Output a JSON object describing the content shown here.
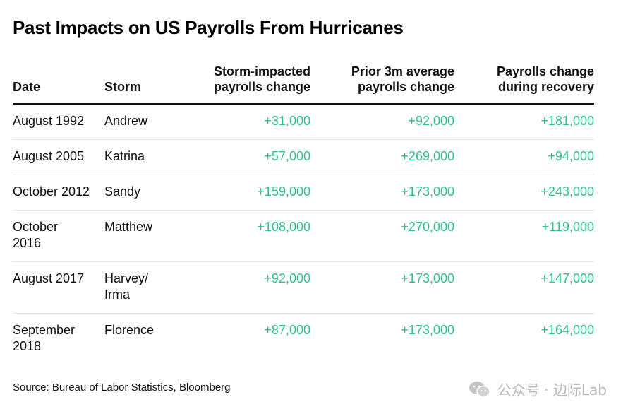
{
  "title": "Past Impacts on US Payrolls From Hurricanes",
  "table": {
    "headers": {
      "date": "Date",
      "storm": "Storm",
      "col_a_line1": "Storm-impacted",
      "col_a_line2": "payrolls change",
      "col_b_line1": "Prior 3m average",
      "col_b_line2": "payrolls change",
      "col_c_line1": "Payrolls change",
      "col_c_line2": "during recovery"
    },
    "rows": [
      {
        "date_l1": "August 1992",
        "date_l2": "",
        "storm_l1": "Andrew",
        "storm_l2": "",
        "impacted": "+31,000",
        "prior": "+92,000",
        "recovery": "+181,000"
      },
      {
        "date_l1": "August 2005",
        "date_l2": "",
        "storm_l1": "Katrina",
        "storm_l2": "",
        "impacted": "+57,000",
        "prior": "+269,000",
        "recovery": "+94,000"
      },
      {
        "date_l1": "October 2012",
        "date_l2": "",
        "storm_l1": "Sandy",
        "storm_l2": "",
        "impacted": "+159,000",
        "prior": "+173,000",
        "recovery": "+243,000"
      },
      {
        "date_l1": "October",
        "date_l2": "2016",
        "storm_l1": "Matthew",
        "storm_l2": "",
        "impacted": "+108,000",
        "prior": "+270,000",
        "recovery": "+119,000"
      },
      {
        "date_l1": "August 2017",
        "date_l2": "",
        "storm_l1": "Harvey/",
        "storm_l2": "Irma",
        "impacted": "+92,000",
        "prior": "+173,000",
        "recovery": "+147,000"
      },
      {
        "date_l1": "September",
        "date_l2": "2018",
        "storm_l1": "Florence",
        "storm_l2": "",
        "impacted": "+87,000",
        "prior": "+173,000",
        "recovery": "+164,000"
      }
    ]
  },
  "source": "Source: Bureau of Labor Statistics, Bloomberg",
  "watermark": {
    "icon": "wechat-icon",
    "text": "公众号 · 边际Lab"
  },
  "colors": {
    "positive_number": "#2fc28b",
    "text": "#111111",
    "watermark": "#b8b8b8"
  }
}
